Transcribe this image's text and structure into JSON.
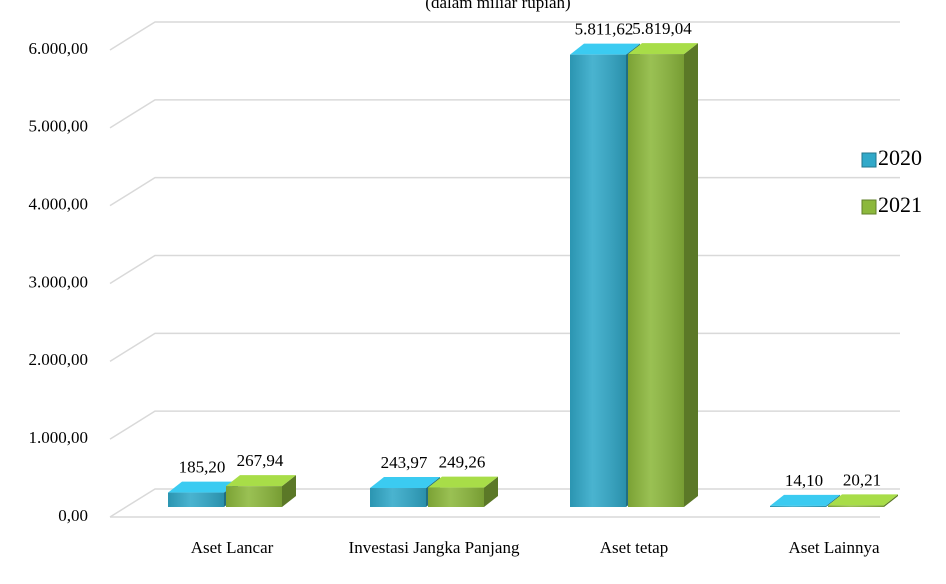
{
  "chart_data": {
    "type": "bar3d",
    "subtitle": "(dalam miliar rupiah)",
    "categories": [
      "Aset Lancar",
      "Investasi Jangka Panjang",
      "Aset tetap",
      "Aset Lainnya"
    ],
    "series": [
      {
        "name": "2020",
        "color": "#31a9c9",
        "values": [
          185.2,
          243.97,
          5811.62,
          14.1
        ],
        "value_labels": [
          "185,20",
          "243,97",
          "5.811,62",
          "14,10"
        ]
      },
      {
        "name": "2021",
        "color": "#8cb83c",
        "values": [
          267.94,
          249.26,
          5819.04,
          20.21
        ],
        "value_labels": [
          "267,94",
          "249,26",
          "5.819,04",
          "20,21"
        ]
      }
    ],
    "ylim": [
      0,
      6000
    ],
    "yticks": [
      {
        "value": 0,
        "label": "0,00"
      },
      {
        "value": 1000,
        "label": "1.000,00"
      },
      {
        "value": 2000,
        "label": "2.000,00"
      },
      {
        "value": 3000,
        "label": "3.000,00"
      },
      {
        "value": 4000,
        "label": "4.000,00"
      },
      {
        "value": 5000,
        "label": "5.000,00"
      },
      {
        "value": 6000,
        "label": "6.000,00"
      }
    ],
    "grid": true,
    "legend": "right"
  }
}
